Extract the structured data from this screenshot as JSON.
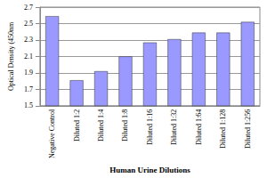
{
  "chart_data": {
    "type": "bar",
    "x_label": "Human Urine Dilutions",
    "y_label": "Optical Density (450nm",
    "categories": [
      "Negative Control",
      "Diluted 1:2",
      "Diluted 1:4",
      "Diluted 1:8",
      "Diluted 1:16",
      "Diluted 1:32",
      "Diluted 1:64",
      "Diluted 1:128",
      "Diluted 1:256"
    ],
    "values": [
      2.59,
      1.81,
      1.92,
      2.1,
      2.27,
      2.31,
      2.39,
      2.39,
      2.52
    ],
    "color": "#9999ff",
    "ylim": [
      1.5,
      2.7
    ],
    "yticks": [
      1.5,
      1.7,
      1.9,
      2.1,
      2.3,
      2.5,
      2.7
    ],
    "grid": true
  }
}
